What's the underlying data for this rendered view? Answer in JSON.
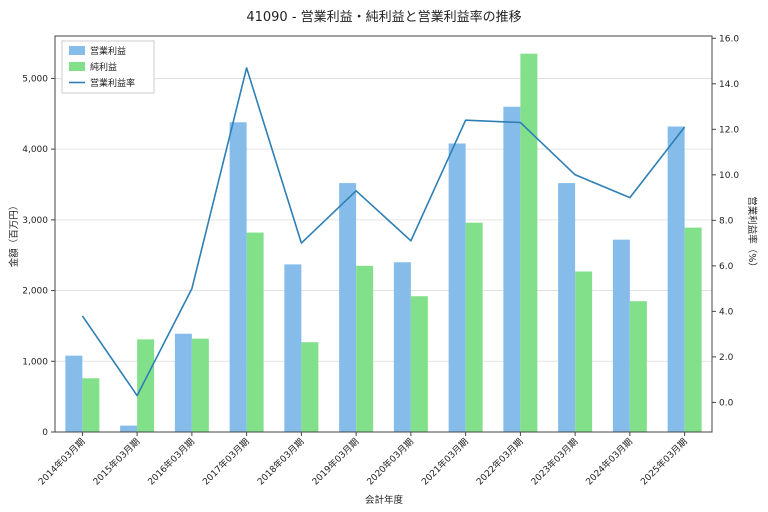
{
  "chart_data": {
    "type": "bar",
    "title": "41090 - 営業利益・純利益と営業利益率の推移",
    "xlabel": "会計年度",
    "ylabel_left": "金額（百万円）",
    "ylabel_right": "営業利益率（%）",
    "categories": [
      "2014年03月期",
      "2015年03月期",
      "2016年03月期",
      "2017年03月期",
      "2018年03月期",
      "2019年03月期",
      "2020年03月期",
      "2021年03月期",
      "2022年03月期",
      "2023年03月期",
      "2024年03月期",
      "2025年03月期"
    ],
    "series": [
      {
        "name": "営業利益",
        "type": "bar",
        "axis": "left",
        "color": "#85BCEA",
        "values": [
          1080,
          90,
          1390,
          4380,
          2370,
          3520,
          2400,
          4080,
          4600,
          3520,
          2720,
          4320
        ]
      },
      {
        "name": "純利益",
        "type": "bar",
        "axis": "left",
        "color": "#82E08A",
        "values": [
          760,
          1310,
          1320,
          2820,
          1270,
          2350,
          1920,
          2960,
          5350,
          2270,
          1850,
          2890
        ]
      },
      {
        "name": "営業利益率",
        "type": "line",
        "axis": "right",
        "color": "#2D7FB5",
        "values": [
          3.8,
          0.3,
          5.0,
          14.7,
          7.0,
          9.3,
          7.1,
          12.4,
          12.3,
          10.0,
          9.0,
          12.1
        ]
      }
    ],
    "left_axis": {
      "min": 0,
      "max": 5600,
      "ticks": [
        0,
        1000,
        2000,
        3000,
        4000,
        5000
      ]
    },
    "right_axis": {
      "min": -1.3,
      "max": 16.1,
      "ticks": [
        0.0,
        2.0,
        4.0,
        6.0,
        8.0,
        10.0,
        12.0,
        14.0,
        16.0
      ]
    },
    "grid": true,
    "legend_position": "top-left"
  }
}
